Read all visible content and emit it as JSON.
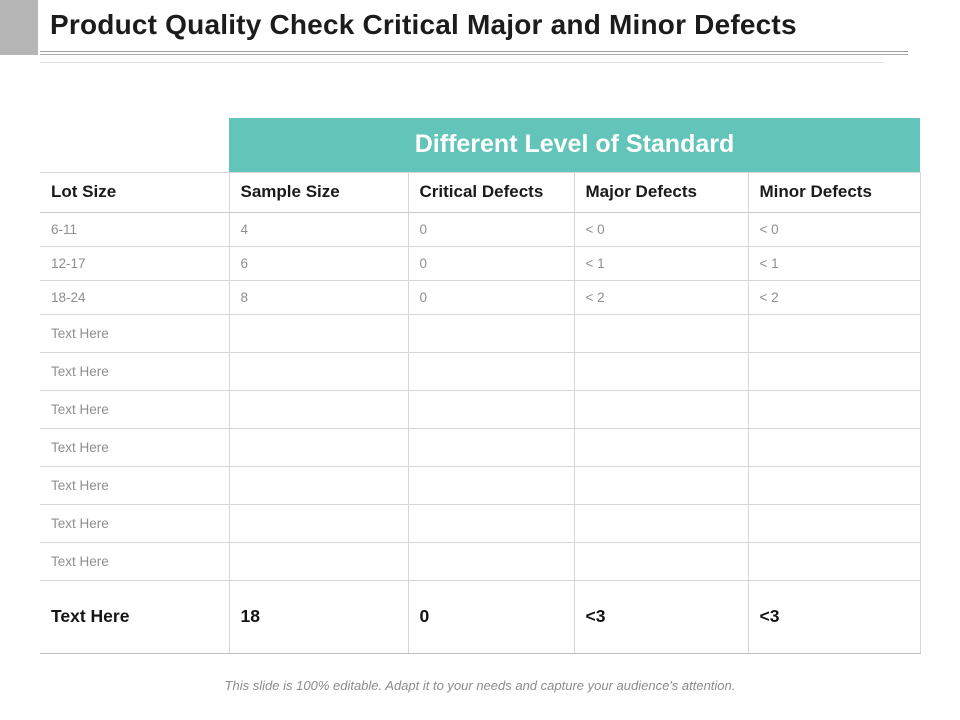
{
  "slide": {
    "title": "Product Quality Check Critical Major and Minor Defects",
    "footer": "This slide is 100% editable. Adapt it to your needs and capture your audience's attention."
  },
  "colors": {
    "teal": "#63C4BA",
    "title_text": "#1C1C1C",
    "muted_text": "#8F8F8F",
    "grid_line": "#D6D6D6",
    "accent_square": "#B5B5B5"
  },
  "table": {
    "merged_header": "Different Level of Standard",
    "columns": [
      "Lot Size",
      "Sample Size",
      "Critical Defects",
      "Major Defects",
      "Minor Defects"
    ],
    "rows": [
      [
        "6-11",
        "4",
        "0",
        "< 0",
        "< 0"
      ],
      [
        "12-17",
        "6",
        "0",
        "< 1",
        "< 1"
      ],
      [
        "18-24",
        "8",
        "0",
        "< 2",
        "< 2"
      ],
      [
        "Text Here",
        "",
        "",
        "",
        ""
      ],
      [
        "Text Here",
        "",
        "",
        "",
        ""
      ],
      [
        "Text Here",
        "",
        "",
        "",
        ""
      ],
      [
        "Text Here",
        "",
        "",
        "",
        ""
      ],
      [
        "Text Here",
        "",
        "",
        "",
        ""
      ],
      [
        "Text Here",
        "",
        "",
        "",
        ""
      ],
      [
        "Text Here",
        "",
        "",
        "",
        ""
      ]
    ],
    "total_row": [
      "Text Here",
      "18",
      "0",
      "<3",
      "<3"
    ]
  }
}
